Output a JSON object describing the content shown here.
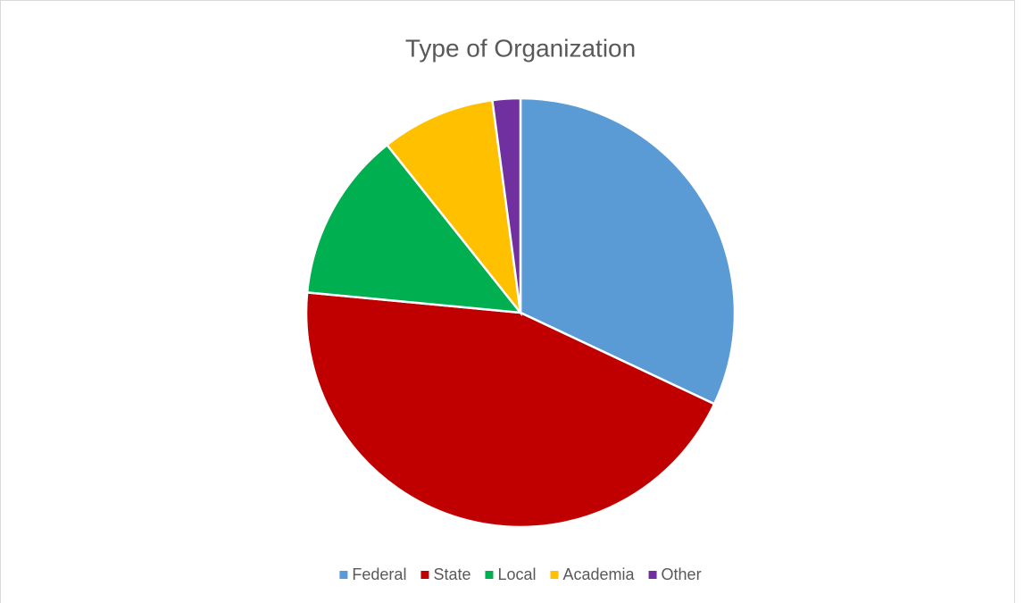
{
  "chart_data": {
    "type": "pie",
    "title": "Type of Organization",
    "categories": [
      "Federal",
      "State",
      "Local",
      "Academia",
      "Other"
    ],
    "values": [
      32,
      44.5,
      12.8,
      8.6,
      2.1
    ],
    "colors": [
      "#5b9bd5",
      "#c00000",
      "#00b050",
      "#ffc000",
      "#7030a0"
    ],
    "legend": "bottom"
  }
}
